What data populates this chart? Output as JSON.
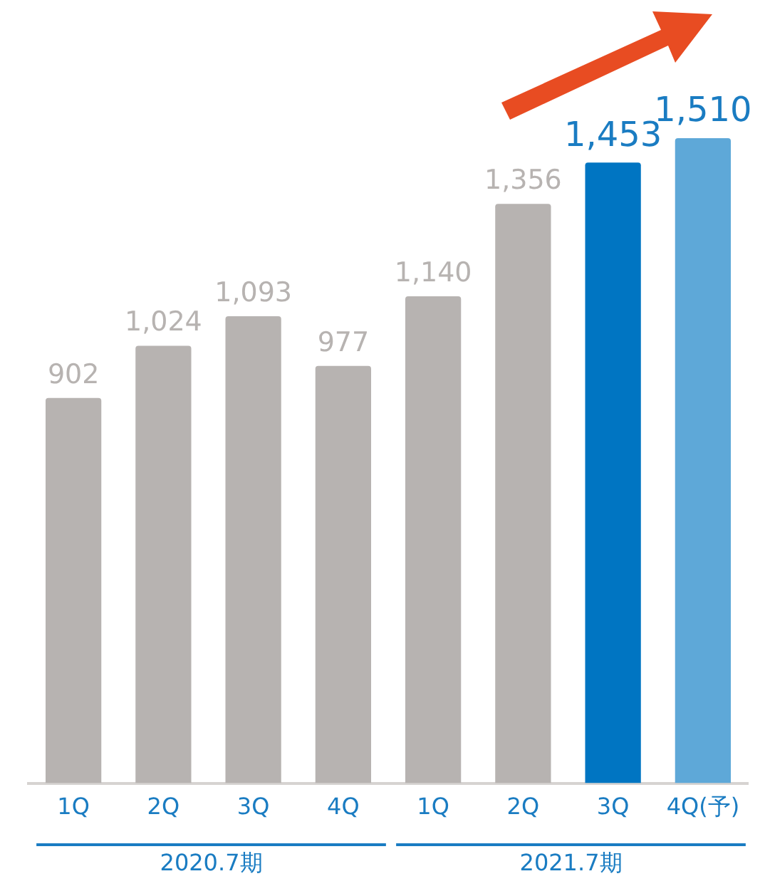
{
  "chart_data": {
    "type": "bar",
    "categories": [
      "1Q",
      "2Q",
      "3Q",
      "4Q",
      "1Q",
      "2Q",
      "3Q",
      "4Q(予)"
    ],
    "values": [
      902,
      1024,
      1093,
      977,
      1140,
      1356,
      1453,
      1510
    ],
    "colors": [
      "#b7b3b1",
      "#b7b3b1",
      "#b7b3b1",
      "#b7b3b1",
      "#b7b3b1",
      "#b7b3b1",
      "#0075c2",
      "#5ea8d8"
    ],
    "value_labels": [
      "902",
      "1,024",
      "1,093",
      "977",
      "1,140",
      "1,356",
      "1,453",
      "1,510"
    ],
    "annotations": [
      "2020.7期",
      "2021.7期"
    ],
    "grid": false,
    "legend": false
  }
}
